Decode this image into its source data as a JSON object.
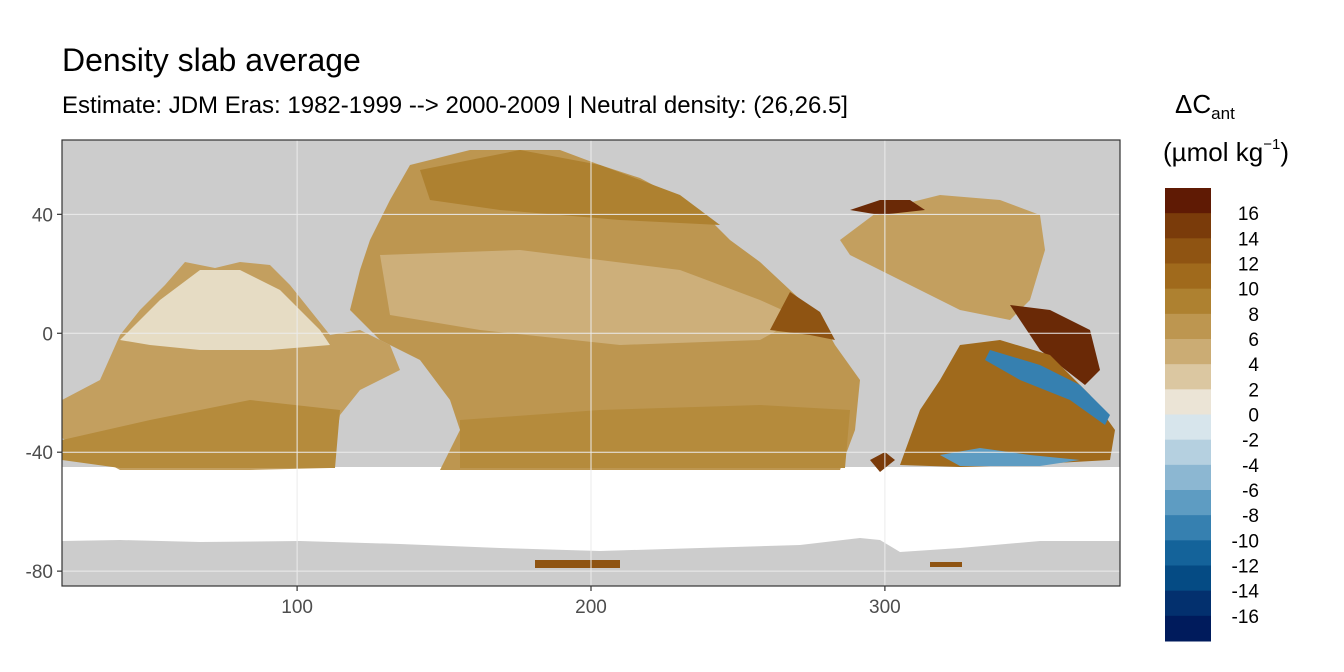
{
  "title": "Density slab average",
  "subtitle": "Estimate: JDM Eras: 1982-1999 --> 2000-2009 | Neutral density: (26,26.5]",
  "map": {
    "x_ticks": [
      {
        "value": 100,
        "label": "100"
      },
      {
        "value": 200,
        "label": "200"
      },
      {
        "value": 300,
        "label": "300"
      }
    ],
    "y_ticks": [
      {
        "value": 40,
        "label": "40"
      },
      {
        "value": 0,
        "label": "0"
      },
      {
        "value": -40,
        "label": "-40"
      },
      {
        "value": -80,
        "label": "-80"
      }
    ],
    "xlim": [
      20,
      380
    ],
    "ylim": [
      -85,
      65
    ],
    "land_color": "#cccccc",
    "nodata_color": "#ffffff"
  },
  "legend": {
    "title_main": "ΔC",
    "title_sub": "ant",
    "unit_open": "(µmol kg",
    "unit_sup": "−1",
    "unit_close": ")",
    "bins": [
      {
        "color": "#5f1a04"
      },
      {
        "color": "#7a3b0a"
      },
      {
        "color": "#8f5412"
      },
      {
        "color": "#a06a1c"
      },
      {
        "color": "#ae8130"
      },
      {
        "color": "#bd9650"
      },
      {
        "color": "#cbac74"
      },
      {
        "color": "#dbc7a1"
      },
      {
        "color": "#ebe4d6"
      },
      {
        "color": "#d7e5ec"
      },
      {
        "color": "#b5d0e0"
      },
      {
        "color": "#8cb7d2"
      },
      {
        "color": "#5e9cc2"
      },
      {
        "color": "#3680b0"
      },
      {
        "color": "#14639a"
      },
      {
        "color": "#054b84"
      },
      {
        "color": "#03306e"
      },
      {
        "color": "#001b5c"
      }
    ],
    "labels": [
      "16",
      "14",
      "12",
      "10",
      "8",
      "6",
      "4",
      "2",
      "0",
      "-2",
      "-4",
      "-6",
      "-8",
      "-10",
      "-12",
      "-14",
      "-16"
    ]
  }
}
